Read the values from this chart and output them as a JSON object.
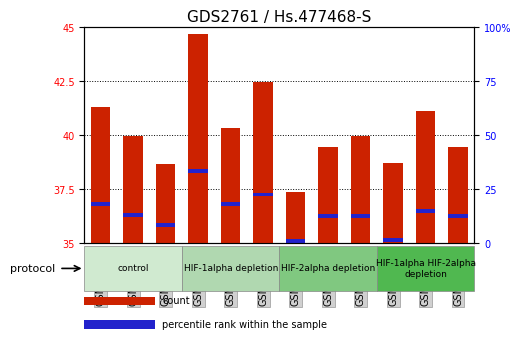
{
  "title": "GDS2761 / Hs.477468-S",
  "samples": [
    "GSM71659",
    "GSM71660",
    "GSM71661",
    "GSM71662",
    "GSM71663",
    "GSM71664",
    "GSM71665",
    "GSM71666",
    "GSM71667",
    "GSM71668",
    "GSM71669",
    "GSM71670"
  ],
  "count_values": [
    41.3,
    39.95,
    38.65,
    44.7,
    40.35,
    42.45,
    37.35,
    39.45,
    39.95,
    38.7,
    41.1,
    39.45
  ],
  "percentile_values": [
    36.8,
    36.3,
    35.85,
    38.35,
    36.8,
    37.25,
    35.1,
    36.25,
    36.25,
    35.15,
    36.5,
    36.25
  ],
  "bar_bottom": 35.0,
  "ylim_left": [
    35,
    45
  ],
  "ylim_right": [
    0,
    100
  ],
  "yticks_left": [
    35,
    37.5,
    40,
    42.5,
    45
  ],
  "yticks_right": [
    0,
    25,
    50,
    75,
    100
  ],
  "bar_color": "#cc2200",
  "percentile_color": "#2222cc",
  "bar_width": 0.6,
  "group_info": [
    {
      "start": 0,
      "end": 3,
      "label": "control",
      "color": "#d0ead0"
    },
    {
      "start": 3,
      "end": 6,
      "label": "HIF-1alpha depletion",
      "color": "#b0d8b0"
    },
    {
      "start": 6,
      "end": 9,
      "label": "HIF-2alpha depletion",
      "color": "#80c880"
    },
    {
      "start": 9,
      "end": 12,
      "label": "HIF-1alpha HIF-2alpha\ndepletion",
      "color": "#50b850"
    }
  ],
  "legend_count_label": "count",
  "legend_percentile_label": "percentile rank within the sample",
  "protocol_label": "protocol",
  "background_color": "#ffffff",
  "grid_color": "#000000",
  "title_fontsize": 11,
  "tick_fontsize": 7,
  "label_fontsize": 8
}
